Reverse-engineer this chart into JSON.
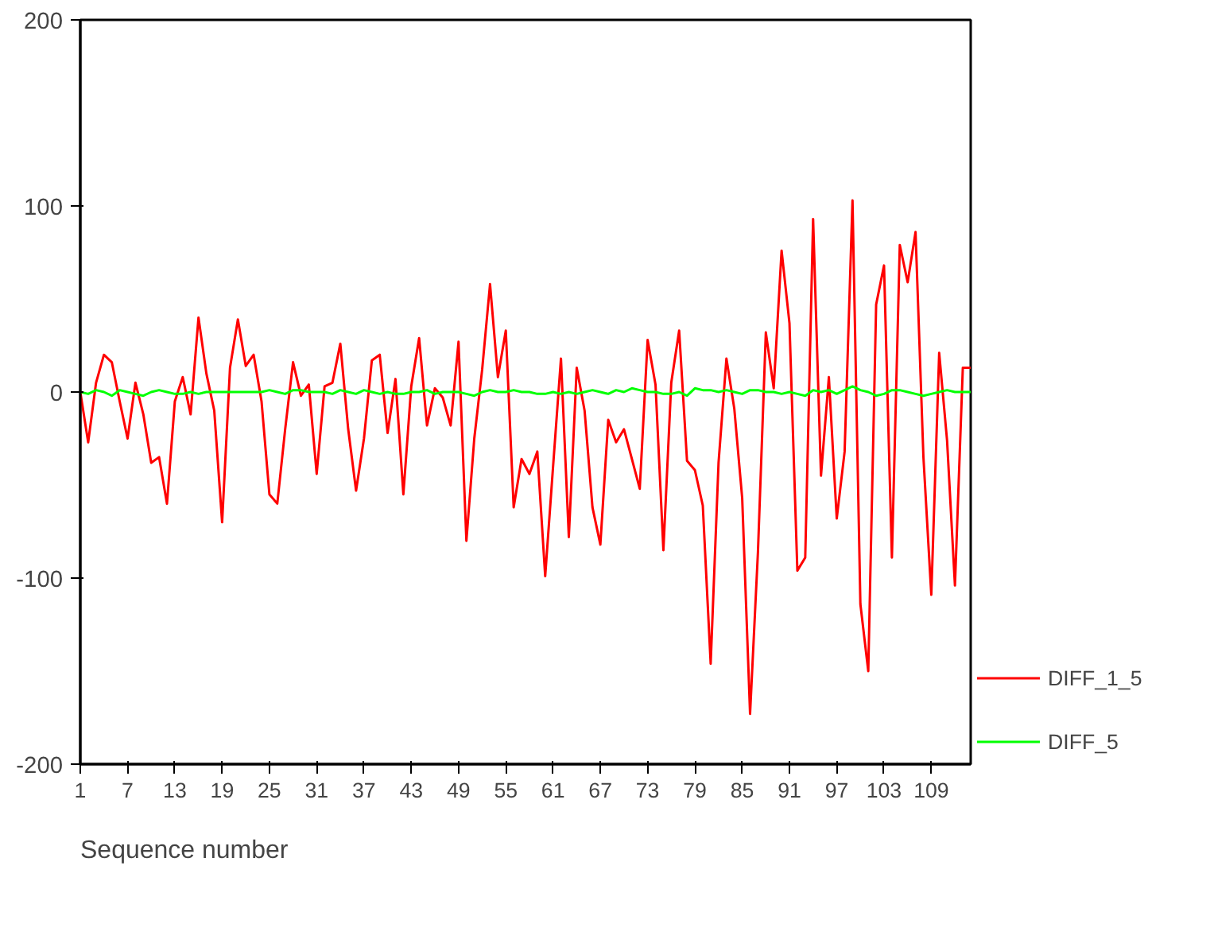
{
  "chart_data": {
    "type": "line",
    "xlabel": "Sequence number",
    "x": [
      1,
      2,
      3,
      4,
      5,
      6,
      7,
      8,
      9,
      10,
      11,
      12,
      13,
      14,
      15,
      16,
      17,
      18,
      19,
      20,
      21,
      22,
      23,
      24,
      25,
      26,
      27,
      28,
      29,
      30,
      31,
      32,
      33,
      34,
      35,
      36,
      37,
      38,
      39,
      40,
      41,
      42,
      43,
      44,
      45,
      46,
      47,
      48,
      49,
      50,
      51,
      52,
      53,
      54,
      55,
      56,
      57,
      58,
      59,
      60,
      61,
      62,
      63,
      64,
      65,
      66,
      67,
      68,
      69,
      70,
      71,
      72,
      73,
      74,
      75,
      76,
      77,
      78,
      79,
      80,
      81,
      82,
      83,
      84,
      85,
      86,
      87,
      88,
      89,
      90,
      91,
      92,
      93,
      94,
      95,
      96,
      97,
      98,
      99,
      100,
      101,
      102,
      103,
      104,
      105,
      106,
      107,
      108,
      109,
      110,
      111,
      112,
      113,
      114
    ],
    "series": [
      {
        "name": "DIFF_1_5",
        "color": "#ff0000",
        "values": [
          0,
          -27,
          5,
          20,
          16,
          -5,
          -25,
          5,
          -12,
          -38,
          -35,
          -60,
          -5,
          8,
          -12,
          40,
          10,
          -10,
          -70,
          13,
          39,
          14,
          20,
          -5,
          -55,
          -60,
          -20,
          16,
          -2,
          4,
          -44,
          3,
          5,
          26,
          -20,
          -53,
          -25,
          17,
          20,
          -22,
          7,
          -55,
          3,
          29,
          -18,
          2,
          -3,
          -18,
          27,
          -80,
          -25,
          12,
          58,
          8,
          33,
          -62,
          -36,
          -44,
          -32,
          -99,
          -40,
          18,
          -78,
          13,
          -10,
          -62,
          -82,
          -15,
          -27,
          -20,
          -36,
          -52,
          28,
          4,
          -85,
          5,
          33,
          -37,
          -42,
          -61,
          -146,
          -38,
          18,
          -9,
          -57,
          -173,
          -86,
          32,
          2,
          76,
          37,
          -96,
          -89,
          93,
          -45,
          8,
          -68,
          -32,
          103,
          -114,
          -150,
          47,
          68,
          -89,
          79,
          59,
          86,
          -35,
          -109,
          21,
          -26,
          -104,
          13,
          13
        ]
      },
      {
        "name": "DIFF_5",
        "color": "#00ff00",
        "values": [
          0,
          -1,
          1,
          0,
          -2,
          1,
          0,
          -1,
          -2,
          0,
          1,
          0,
          -1,
          -1,
          0,
          -1,
          0,
          0,
          0,
          0,
          0,
          0,
          0,
          0,
          1,
          0,
          -1,
          1,
          1,
          0,
          0,
          0,
          -1,
          1,
          0,
          -1,
          1,
          0,
          -1,
          0,
          -1,
          -1,
          0,
          0,
          1,
          -1,
          0,
          0,
          0,
          -1,
          -2,
          0,
          1,
          0,
          0,
          1,
          0,
          0,
          -1,
          -1,
          0,
          -1,
          0,
          -1,
          0,
          1,
          0,
          -1,
          1,
          0,
          2,
          1,
          0,
          0,
          -1,
          -1,
          0,
          -2,
          2,
          1,
          1,
          0,
          1,
          0,
          -1,
          1,
          1,
          0,
          0,
          -1,
          0,
          -1,
          -2,
          1,
          0,
          1,
          -1,
          1,
          3,
          1,
          0,
          -2,
          -1,
          1,
          1,
          0,
          -1,
          -2,
          -1,
          0,
          1,
          0,
          0,
          0
        ]
      }
    ],
    "xlim": [
      1,
      114
    ],
    "xticks": [
      1,
      7,
      13,
      19,
      25,
      31,
      37,
      43,
      49,
      55,
      61,
      67,
      73,
      79,
      85,
      91,
      97,
      103,
      109
    ],
    "ylim": [
      -200,
      200
    ],
    "yticks": [
      -200,
      -100,
      0,
      100,
      200
    ],
    "grid": false,
    "legend": "right",
    "line_style": "solid"
  }
}
